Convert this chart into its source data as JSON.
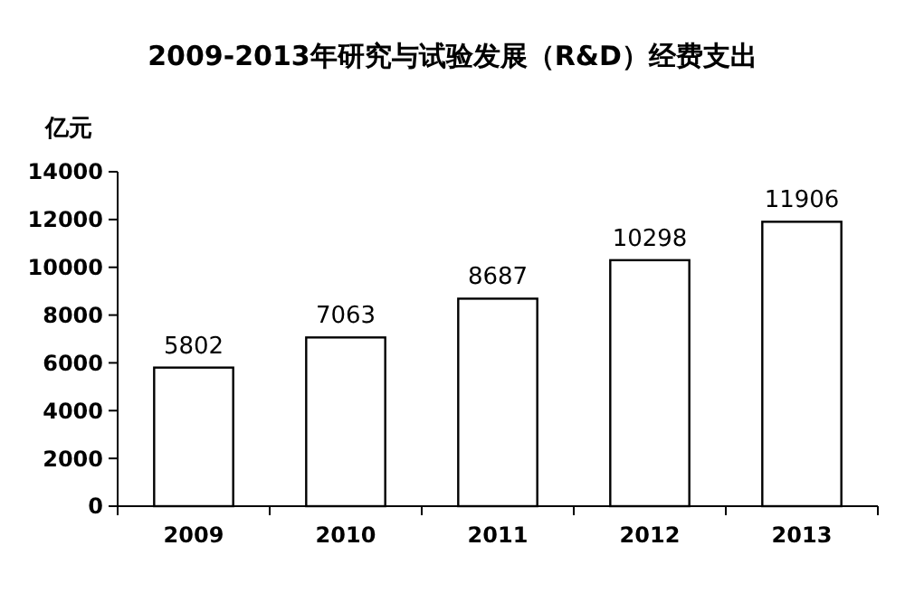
{
  "chart_data": {
    "type": "bar",
    "title": "2009-2013年研究与试验发展（R&D）经费支出",
    "ylabel": "亿元",
    "categories": [
      "2009",
      "2010",
      "2011",
      "2012",
      "2013"
    ],
    "values": [
      5802,
      7063,
      8687,
      10298,
      11906
    ],
    "color": "#ffffff",
    "ylim": [
      0,
      14000
    ],
    "yticks": [
      0,
      2000,
      4000,
      6000,
      8000,
      10000,
      12000,
      14000
    ],
    "data_labels": true,
    "grid": false
  }
}
